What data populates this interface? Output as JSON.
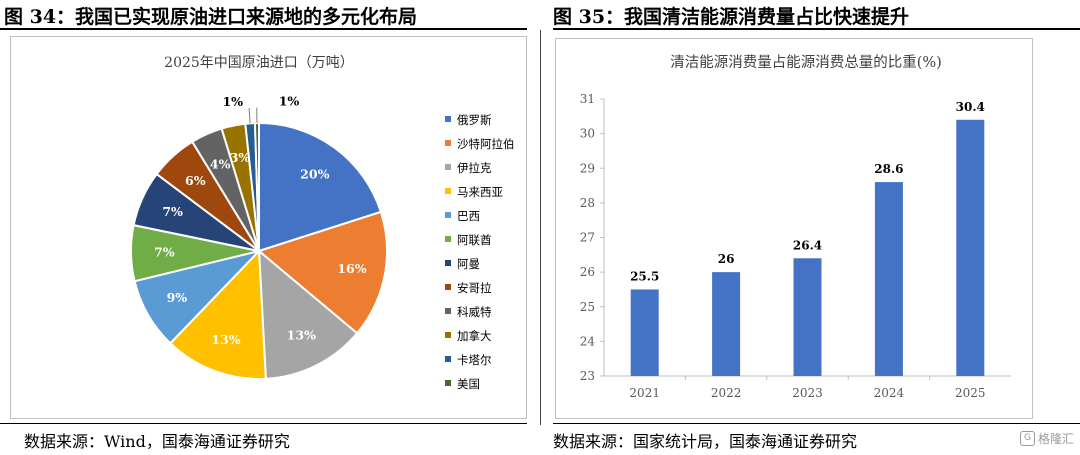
{
  "left_figure": {
    "title": "图 34：我国已实现原油进口来源地的多元化布局",
    "source": "数据来源：Wind，国泰海通证券研究"
  },
  "right_figure": {
    "title": "图 35：我国清洁能源消费量占比快速提升",
    "source": "数据来源：国家统计局，国泰海通证券研究"
  },
  "watermark": {
    "icon": "gelonghui-logo-icon",
    "text": "格隆汇"
  },
  "chart_data": [
    {
      "type": "pie",
      "title": "2025年中国原油进口（万吨）",
      "legend_position": "right",
      "slices": [
        {
          "label": "俄罗斯",
          "value": 20,
          "display": "20%",
          "color": "#4472C4"
        },
        {
          "label": "沙特阿拉伯",
          "value": 16,
          "display": "16%",
          "color": "#ED7D31"
        },
        {
          "label": "伊拉克",
          "value": 13,
          "display": "13%",
          "color": "#A5A5A5"
        },
        {
          "label": "马来西亚",
          "value": 13,
          "display": "13%",
          "color": "#FFC000"
        },
        {
          "label": "巴西",
          "value": 9,
          "display": "9%",
          "color": "#5B9BD5"
        },
        {
          "label": "阿联酋",
          "value": 7,
          "display": "7%",
          "color": "#70AD47"
        },
        {
          "label": "阿曼",
          "value": 7,
          "display": "7%",
          "color": "#264478"
        },
        {
          "label": "安哥拉",
          "value": 6,
          "display": "6%",
          "color": "#9E480E"
        },
        {
          "label": "科威特",
          "value": 4,
          "display": "4%",
          "color": "#636363"
        },
        {
          "label": "加拿大",
          "value": 3,
          "display": "3%",
          "color": "#997300"
        },
        {
          "label": "卡塔尔",
          "value": 1.2,
          "display": "1%",
          "color": "#255E91"
        },
        {
          "label": "美国",
          "value": 0.5,
          "display": "1%",
          "color": "#43682B"
        }
      ]
    },
    {
      "type": "bar",
      "title": "清洁能源消费量占能源消费总量的比重(%)",
      "categories": [
        "2021",
        "2022",
        "2023",
        "2024",
        "2025"
      ],
      "values": [
        25.5,
        26,
        26.4,
        28.6,
        30.4
      ],
      "data_labels": [
        "25.5",
        "26",
        "26.4",
        "28.6",
        "30.4"
      ],
      "ylim": [
        23,
        31
      ],
      "yticks": [
        "23",
        "24",
        "25",
        "26",
        "27",
        "28",
        "29",
        "30",
        "31"
      ],
      "bar_color": "#4472C4",
      "grid": false
    }
  ]
}
